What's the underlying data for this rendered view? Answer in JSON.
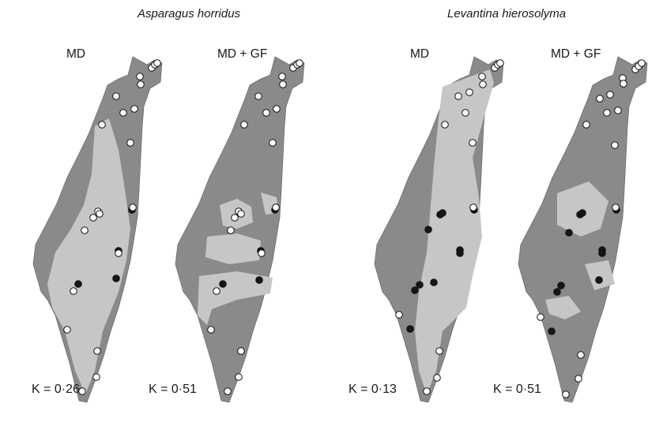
{
  "species": {
    "left": "Asparagus horridus",
    "right": "Levantina hierosolyma"
  },
  "panels": [
    {
      "label": "MD",
      "kappa": "K = 0·26",
      "kappa_value": 0.26,
      "habitat_extent": "moderate"
    },
    {
      "label": "MD + GF",
      "kappa": "K = 0·51",
      "kappa_value": 0.51,
      "habitat_extent": "patchy"
    },
    {
      "label": "MD",
      "kappa": "K = 0·13",
      "kappa_value": 0.13,
      "habitat_extent": "wide"
    },
    {
      "label": "MD + GF",
      "kappa": "K = 0·51",
      "kappa_value": 0.51,
      "habitat_extent": "patchy"
    }
  ],
  "colors": {
    "unsuitable": "#8a8a8a",
    "suitable": "#c6c6c6",
    "absence_marker": "#ffffff",
    "presence_marker": "#161616"
  },
  "legend_semantics": {
    "open_circle": "absence",
    "filled_circle": "presence"
  }
}
